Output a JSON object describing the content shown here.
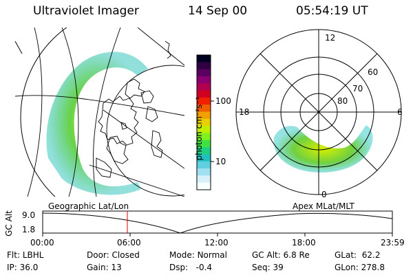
{
  "header": {
    "instrument": "Ultraviolet Imager",
    "date": "14 Sep 00",
    "time": "05:54:19 UT"
  },
  "colorbar": {
    "unit_label": "photon cm⁻²s⁻¹",
    "ticks": [
      "100",
      "10"
    ],
    "colors": [
      "#000020",
      "#300040",
      "#5a0060",
      "#8a0070",
      "#b00050",
      "#d00020",
      "#f02000",
      "#f06000",
      "#f0a000",
      "#e8d000",
      "#c0f000",
      "#80f020",
      "#40e040",
      "#20d080",
      "#20c0c0",
      "#60d0e0",
      "#a0e0f0",
      "#d8f0f8",
      "#f8ffff"
    ]
  },
  "geo_panel": {
    "label": "Geographic Lat/Lon"
  },
  "polar_panel": {
    "label": "Apex MLat/MLT",
    "mlt_labels": {
      "top": "12",
      "left": "18",
      "right": "6",
      "bottom": "0"
    },
    "lat_labels": [
      "60",
      "70",
      "80"
    ]
  },
  "altitude_plot": {
    "ylabel": "GC Alt",
    "yticks": [
      "9.0",
      "1.8"
    ],
    "xticks": [
      "00:00",
      "06:00",
      "12:00",
      "18:00",
      "23:59"
    ],
    "marker_color": "#e00000"
  },
  "footer": {
    "row1": [
      {
        "label": "Flt:",
        "value": "LBHL"
      },
      {
        "label": "Door:",
        "value": "Closed"
      },
      {
        "label": "Mode:",
        "value": "Normal"
      },
      {
        "label": "GC Alt:",
        "value": "6.8 Re"
      },
      {
        "label": "GLat:",
        "value": "62.2"
      }
    ],
    "row2": [
      {
        "label": "IP:",
        "value": "36.0"
      },
      {
        "label": "Gain:",
        "value": "13"
      },
      {
        "label": "Dsp:",
        "value": "-0.4"
      },
      {
        "label": "Seq:",
        "value": "39"
      },
      {
        "label": "GLon:",
        "value": "278.8"
      }
    ]
  }
}
